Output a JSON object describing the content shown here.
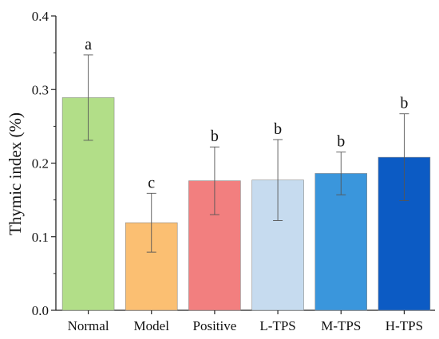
{
  "chart_data": {
    "type": "bar",
    "title": "",
    "xlabel": "",
    "ylabel": "Thymic index (%)",
    "ylim": [
      0,
      0.4
    ],
    "yticks": [
      "0.0",
      "0.1",
      "0.2",
      "0.3",
      "0.4"
    ],
    "grid": false,
    "categories": [
      "Normal",
      "Model",
      "Positive",
      "L-TPS",
      "M-TPS",
      "H-TPS"
    ],
    "values": [
      0.289,
      0.119,
      0.176,
      0.177,
      0.186,
      0.208
    ],
    "errors": [
      0.058,
      0.04,
      0.046,
      0.055,
      0.029,
      0.059
    ],
    "significance": [
      "a",
      "c",
      "b",
      "b",
      "b",
      "b"
    ],
    "colors": [
      "#b2de88",
      "#fbbf72",
      "#f27f7f",
      "#c6dbef",
      "#3a96dc",
      "#0c5bc4"
    ]
  }
}
